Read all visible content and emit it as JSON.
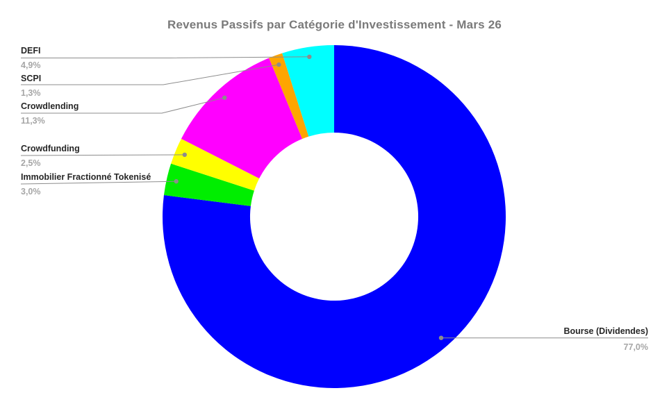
{
  "chart_data": {
    "type": "pie",
    "subtype": "donut",
    "title": "Revenus Passifs par Catégorie d'Investissement - Mars 26",
    "unit": "%",
    "hole_ratio": 0.49,
    "legend": "none",
    "label_style": "callout-with-leader-line",
    "start_angle_deg": 0,
    "direction": "clockwise",
    "slices": [
      {
        "label": "Bourse (Dividendes)",
        "value": 77.0,
        "pct_label": "77,0%",
        "color": "#0000ff"
      },
      {
        "label": "Immobilier Fractionné Tokenisé",
        "value": 3.0,
        "pct_label": "3,0%",
        "color": "#00ee00"
      },
      {
        "label": "Crowdfunding",
        "value": 2.5,
        "pct_label": "2,5%",
        "color": "#ffff00"
      },
      {
        "label": "Crowdlending",
        "value": 11.3,
        "pct_label": "11,3%",
        "color": "#ff00ff"
      },
      {
        "label": "SCPI",
        "value": 1.3,
        "pct_label": "1,3%",
        "color": "#ffa500"
      },
      {
        "label": "DEFI",
        "value": 4.9,
        "pct_label": "4,9%",
        "color": "#00ffff"
      }
    ],
    "colors": {
      "background": "#ffffff",
      "title_text": "#7a7a7a",
      "label_text": "#262626",
      "pct_text": "#a6a6a6",
      "leader_line": "#8c8c8c"
    }
  }
}
